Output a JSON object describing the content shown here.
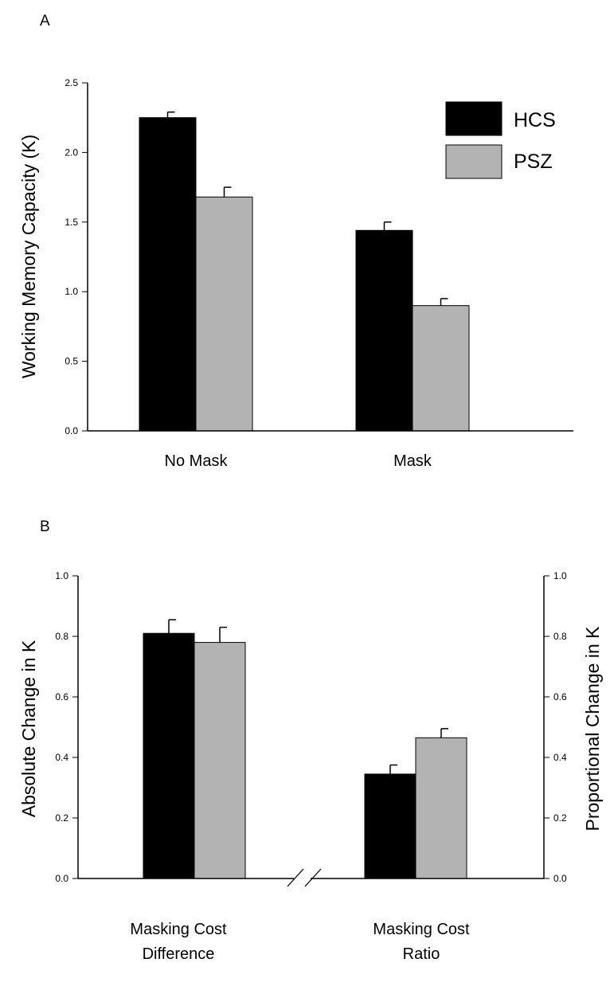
{
  "colors": {
    "hcs": "#000000",
    "psz": "#b3b3b3",
    "axis": "#000000",
    "error": "#000000"
  },
  "chart_data": [
    {
      "panel": "A",
      "type": "bar",
      "ylabel": "Working Memory Capacity (K)",
      "ylim": [
        0,
        2.5
      ],
      "yticks": [
        "0.0",
        "0.5",
        "1.0",
        "1.5",
        "2.0",
        "2.5"
      ],
      "categories": [
        "No Mask",
        "Mask"
      ],
      "legend": {
        "position": "top-right"
      },
      "series": [
        {
          "name": "HCS",
          "values": [
            2.25,
            1.44
          ],
          "errors": [
            0.04,
            0.06
          ]
        },
        {
          "name": "PSZ",
          "values": [
            1.68,
            0.9
          ],
          "errors": [
            0.07,
            0.05
          ]
        }
      ]
    },
    {
      "panel": "B",
      "type": "bar",
      "ylabel": "Absolute Change in K",
      "ylabel_right": "Proportional Change in K",
      "ylim": [
        0,
        1.0
      ],
      "yticks": [
        "0.0",
        "0.2",
        "0.4",
        "0.6",
        "0.8",
        "1.0"
      ],
      "categories": [
        [
          "Masking Cost",
          "Difference"
        ],
        [
          "Masking Cost",
          "Ratio"
        ]
      ],
      "series": [
        {
          "name": "HCS",
          "values": [
            0.81,
            0.345
          ],
          "errors": [
            0.045,
            0.03
          ]
        },
        {
          "name": "PSZ",
          "values": [
            0.78,
            0.465
          ],
          "errors": [
            0.05,
            0.03
          ]
        }
      ]
    }
  ]
}
